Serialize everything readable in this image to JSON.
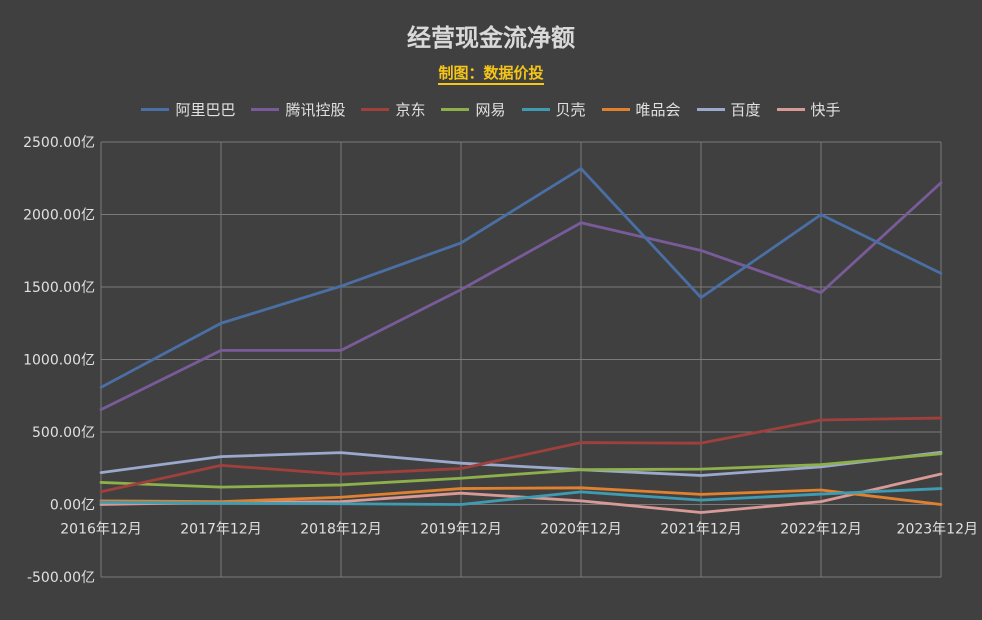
{
  "chart_data": {
    "type": "line",
    "title": "经营现金流净额",
    "subtitle": "制图：数据价投",
    "categories": [
      "2016年12月",
      "2017年12月",
      "2018年12月",
      "2019年12月",
      "2020年12月",
      "2021年12月",
      "2022年12月",
      "2023年12月"
    ],
    "y_unit": "亿",
    "ylim": [
      -500,
      2500
    ],
    "y_ticks": [
      2500,
      2000,
      1500,
      1000,
      500,
      0,
      -500
    ],
    "y_tick_labels": [
      "2500.00亿",
      "2000.00亿",
      "1500.00亿",
      "1000.00亿",
      "500.00亿",
      "0.00亿",
      "-500.00亿"
    ],
    "grid": true,
    "legend_position": "top",
    "series": [
      {
        "name": "阿里巴巴",
        "color": "#4a6fa5",
        "values": [
          808,
          1250,
          1506,
          1804,
          2317,
          1427,
          1999,
          1594
        ]
      },
      {
        "name": "腾讯控股",
        "color": "#7a5b9a",
        "values": [
          654,
          1063,
          1063,
          1482,
          1943,
          1752,
          1461,
          2219
        ]
      },
      {
        "name": "京东",
        "color": "#a0403c",
        "values": [
          88,
          270,
          209,
          248,
          427,
          423,
          583,
          596
        ]
      },
      {
        "name": "网易",
        "color": "#8db04a",
        "values": [
          152,
          120,
          135,
          181,
          240,
          244,
          275,
          350
        ]
      },
      {
        "name": "贝壳",
        "color": "#3f9cb0",
        "values": [
          15,
          10,
          5,
          0,
          87,
          30,
          72,
          110
        ]
      },
      {
        "name": "唯品会",
        "color": "#e0812f",
        "values": [
          25,
          20,
          50,
          110,
          115,
          70,
          100,
          0
        ]
      },
      {
        "name": "百度",
        "color": "#9aa9cc",
        "values": [
          220,
          330,
          358,
          285,
          240,
          200,
          260,
          360
        ]
      },
      {
        "name": "快手",
        "color": "#d89a96",
        "values": [
          0,
          15,
          20,
          78,
          25,
          -55,
          20,
          210
        ]
      }
    ]
  }
}
